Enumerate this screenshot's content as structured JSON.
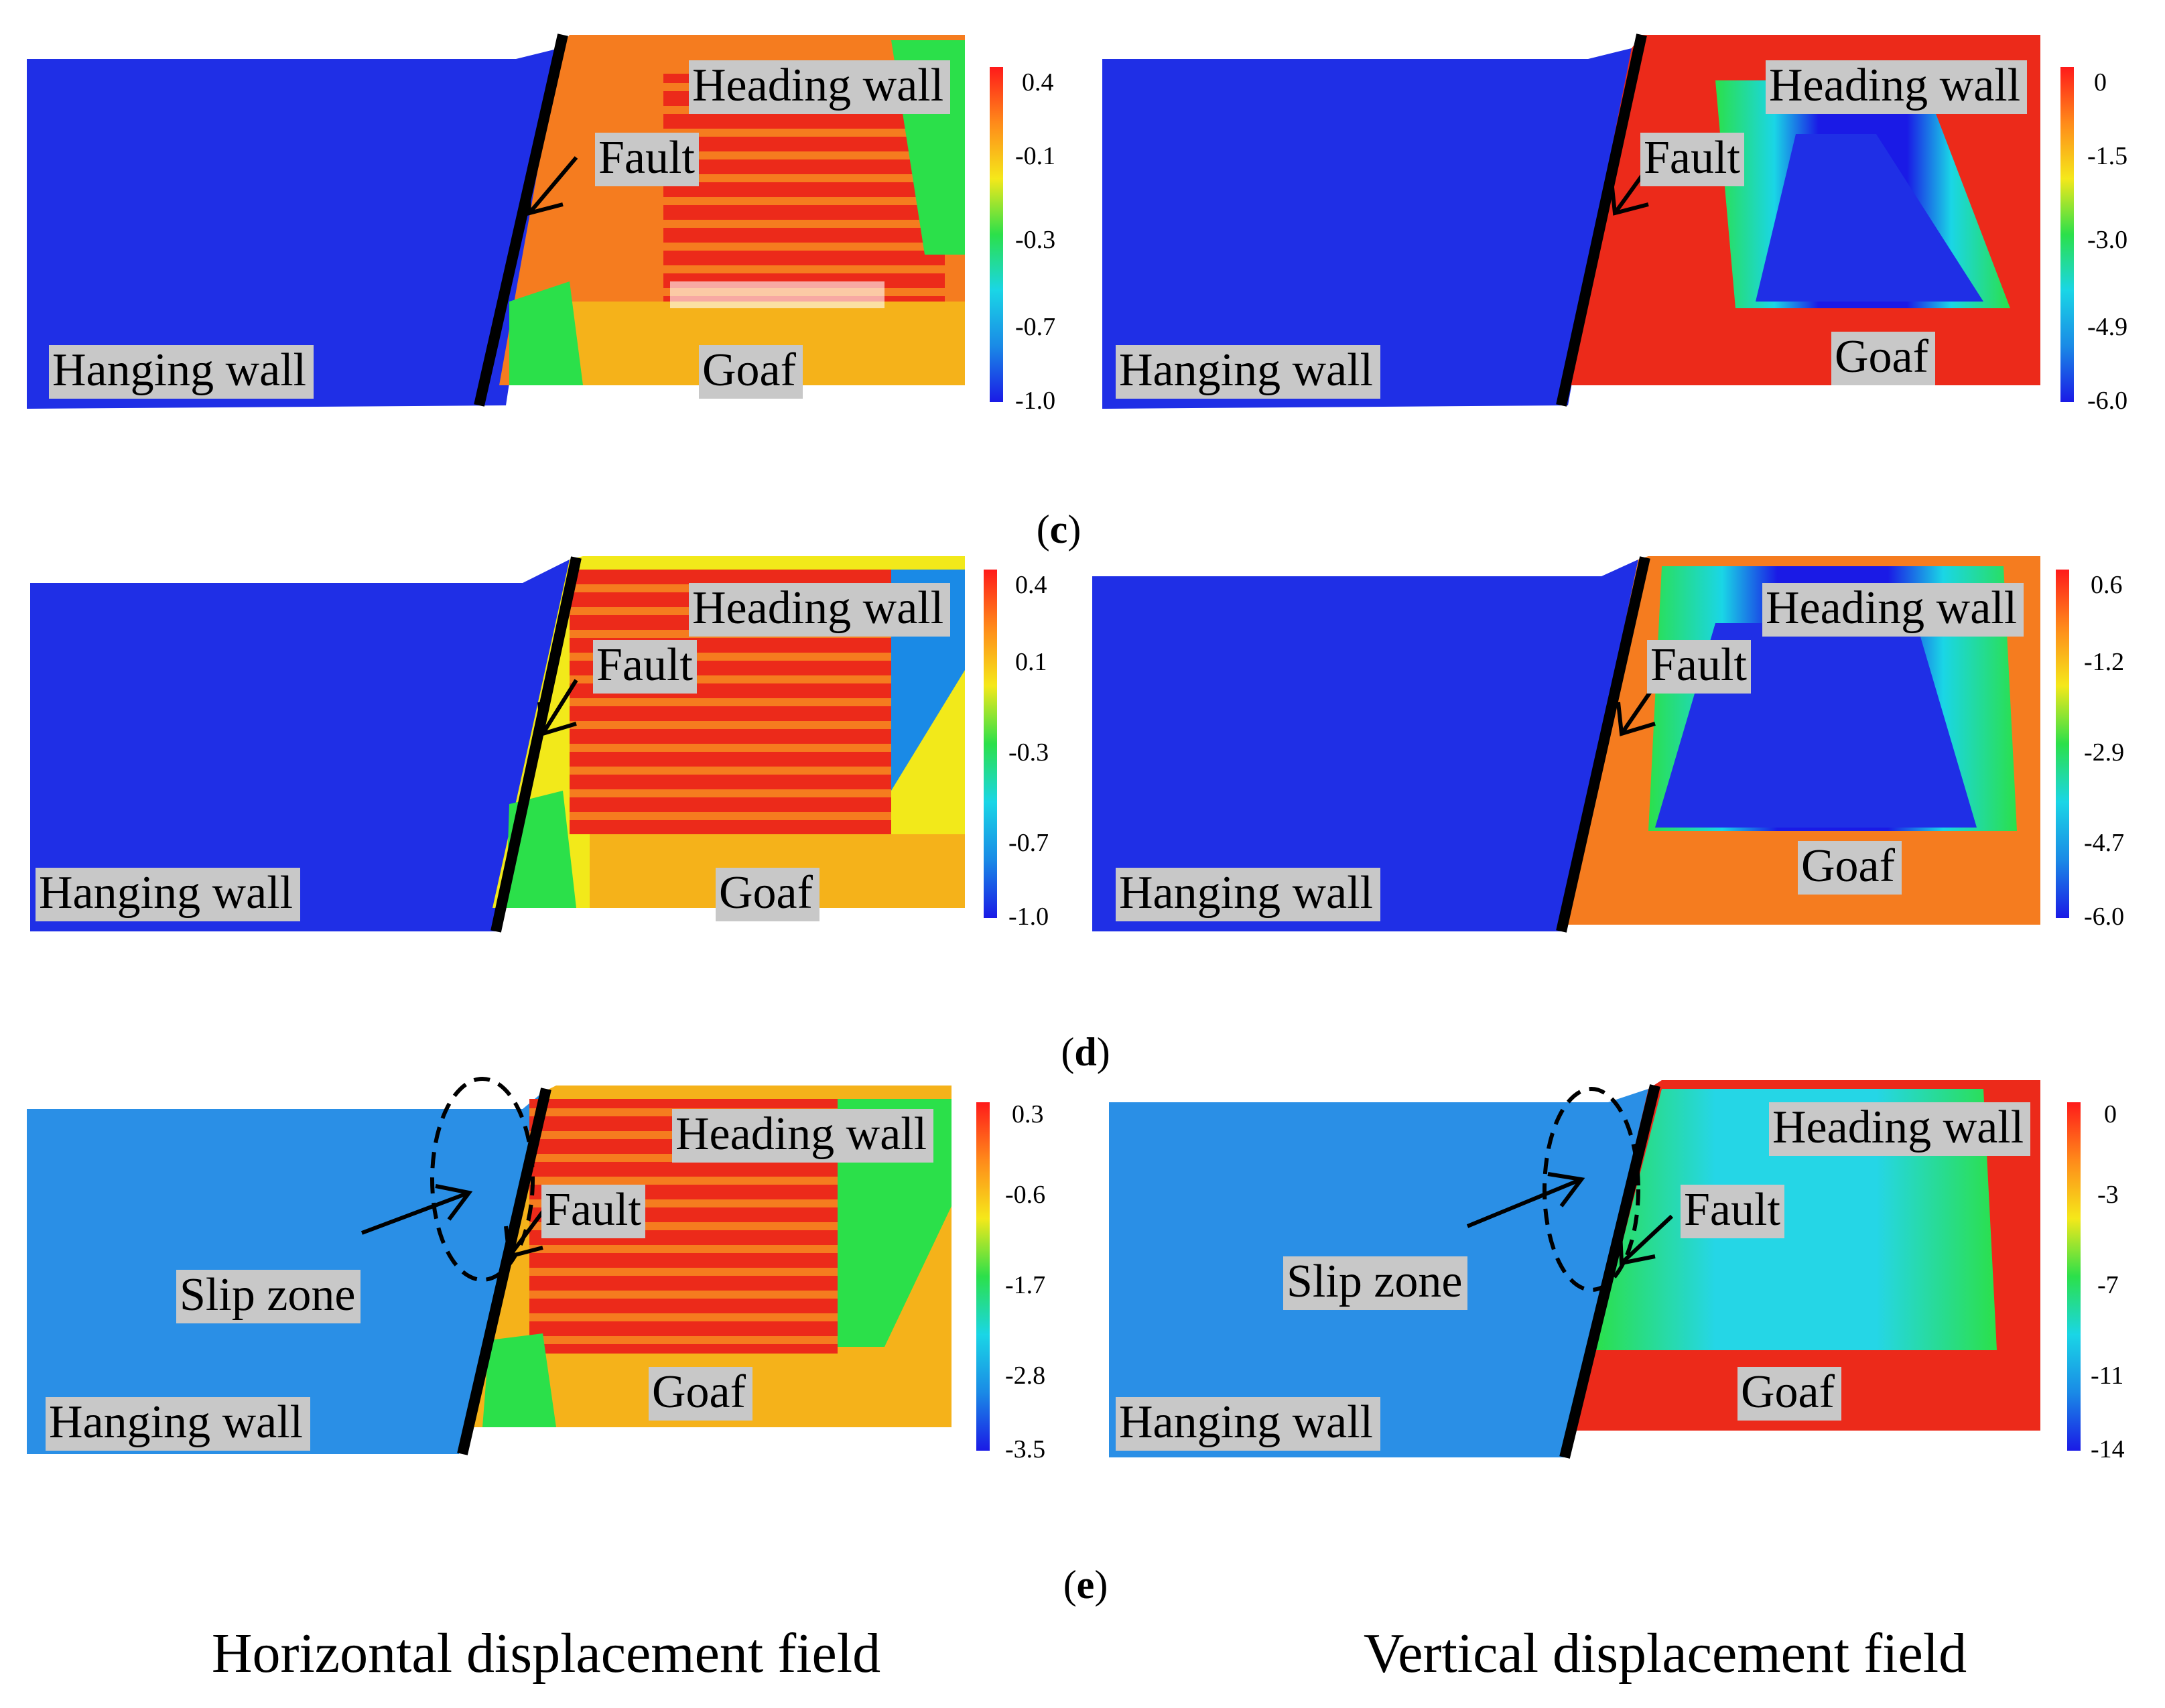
{
  "colors": {
    "blue": "#1f2fe6",
    "light_blue": "#2a8fe6",
    "red": "#ec2a1a",
    "orange": "#f57c1f",
    "yellow_orange": "#f5b21a",
    "yellow": "#f2e91a",
    "green": "#2ee04a",
    "cyan": "#25d6e6",
    "fault_line": "#000000",
    "label_bg": "#c8c8c8"
  },
  "colorbar_gradient": [
    "#ff1a1a",
    "#ff8a1a",
    "#f5e81a",
    "#2be04a",
    "#1ad6e6",
    "#1a8ae6",
    "#1a1ae6"
  ],
  "labels": {
    "hanging_wall": "Hanging wall",
    "heading_wall": "Heading wall",
    "fault": "Fault",
    "goaf": "Goaf",
    "slip_zone": "Slip zone"
  },
  "panels": [
    {
      "id": "c-horizontal",
      "field": "horizontal",
      "stage": "c",
      "scale_ticks": [
        "0.4",
        "-0.1",
        "-0.3",
        "-0.7",
        "-1.0"
      ]
    },
    {
      "id": "c-vertical",
      "field": "vertical",
      "stage": "c",
      "scale_ticks": [
        "0",
        "-1.5",
        "-3.0",
        "-4.9",
        "-6.0"
      ]
    },
    {
      "id": "d-horizontal",
      "field": "horizontal",
      "stage": "d",
      "scale_ticks": [
        "0.4",
        "0.1",
        "-0.3",
        "-0.7",
        "-1.0"
      ]
    },
    {
      "id": "d-vertical",
      "field": "vertical",
      "stage": "d",
      "scale_ticks": [
        "0.6",
        "-1.2",
        "-2.9",
        "-4.7",
        "-6.0"
      ]
    },
    {
      "id": "e-horizontal",
      "field": "horizontal",
      "stage": "e",
      "scale_ticks": [
        "0.3",
        "-0.6",
        "-1.7",
        "-2.8",
        "-3.5"
      ]
    },
    {
      "id": "e-vertical",
      "field": "vertical",
      "stage": "e",
      "scale_ticks": [
        "0",
        "-3",
        "-7",
        "-11",
        "-14"
      ]
    }
  ],
  "captions": [
    {
      "open": "(",
      "letter": "c",
      "close": ")"
    },
    {
      "open": "(",
      "letter": "d",
      "close": ")"
    },
    {
      "open": "(",
      "letter": "e",
      "close": ")"
    }
  ],
  "footer": {
    "left": "Horizontal displacement field",
    "right": "Vertical displacement field"
  }
}
